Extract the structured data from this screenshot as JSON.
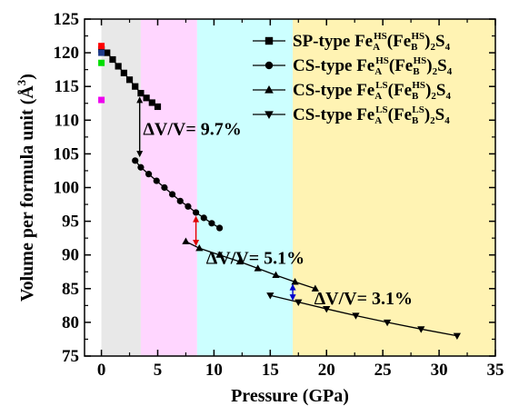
{
  "chart_data": {
    "type": "scatter",
    "xlabel": "Pressure (GPa)",
    "ylabel": "Volume per formula unit (Å³)",
    "ylabel_base": "Volume per formula unit (",
    "ylabel_unit": "Å",
    "ylabel_exp": "3",
    "ylabel_close": ")",
    "xlim": [
      -1.5,
      35
    ],
    "ylim": [
      75,
      125
    ],
    "xticks": [
      0,
      5,
      10,
      15,
      20,
      25,
      30,
      35
    ],
    "yticks": [
      75,
      80,
      85,
      90,
      95,
      100,
      105,
      110,
      115,
      120,
      125
    ],
    "regions": [
      {
        "x0": 0.0,
        "x1": 3.5,
        "color": "#e8e8e8"
      },
      {
        "x0": 3.5,
        "x1": 8.5,
        "color": "#ffd6ff"
      },
      {
        "x0": 8.5,
        "x1": 17.0,
        "color": "#ccffff"
      },
      {
        "x0": 17.0,
        "x1": 35,
        "color": "#fff3b3"
      }
    ],
    "series": [
      {
        "name": "SP-type Fe_A^HS(Fe_B^HS)_2S_4",
        "marker": "square",
        "legend_parts": [
          [
            "t",
            "SP-type Fe"
          ],
          [
            "sub",
            "A"
          ],
          [
            "sup",
            "HS"
          ],
          [
            "t",
            "(Fe"
          ],
          [
            "sub",
            "B"
          ],
          [
            "sup",
            "HS"
          ],
          [
            "t",
            ")"
          ],
          [
            "sub",
            "2"
          ],
          [
            "t",
            "S"
          ],
          [
            "sub",
            "4"
          ]
        ],
        "x": [
          0,
          0.5,
          1.0,
          1.5,
          2.0,
          2.5,
          3.0,
          3.5,
          4.0,
          4.5,
          5.0
        ],
        "y": [
          120.5,
          120.0,
          119.0,
          118.0,
          117.0,
          116.0,
          115.0,
          114.0,
          113.3,
          112.6,
          112.0
        ]
      },
      {
        "name": "CS-type Fe_A^HS(Fe_B^HS)_2S_4",
        "marker": "circle",
        "legend_parts": [
          [
            "t",
            "CS-type Fe"
          ],
          [
            "sub",
            "A"
          ],
          [
            "sup",
            "HS"
          ],
          [
            "t",
            "(Fe"
          ],
          [
            "sub",
            "B"
          ],
          [
            "sup",
            "HS"
          ],
          [
            "t",
            ")"
          ],
          [
            "sub",
            "2"
          ],
          [
            "t",
            "S"
          ],
          [
            "sub",
            "4"
          ]
        ],
        "x": [
          3.0,
          3.5,
          4.2,
          4.9,
          5.6,
          6.3,
          7.0,
          7.7,
          8.4,
          9.1,
          9.8,
          10.5
        ],
        "y": [
          104.0,
          103.0,
          102.0,
          101.0,
          100.0,
          99.0,
          98.0,
          97.2,
          96.3,
          95.5,
          94.7,
          94.0
        ]
      },
      {
        "name": "CS-type Fe_A^LS(Fe_B^HS)_2S_4",
        "marker": "triangle-up",
        "legend_parts": [
          [
            "t",
            "CS-type Fe"
          ],
          [
            "sub",
            "A"
          ],
          [
            "sup",
            "LS"
          ],
          [
            "t",
            "(Fe"
          ],
          [
            "sub",
            "B"
          ],
          [
            "sup",
            "HS"
          ],
          [
            "t",
            ")"
          ],
          [
            "sub",
            "2"
          ],
          [
            "t",
            "S"
          ],
          [
            "sub",
            "4"
          ]
        ],
        "x": [
          7.5,
          8.7,
          10.5,
          12.3,
          13.9,
          15.5,
          17.2,
          19.0
        ],
        "y": [
          92.0,
          91.0,
          90.0,
          89.0,
          88.0,
          87.0,
          86.0,
          85.0
        ]
      },
      {
        "name": "CS-type Fe_A^LS(Fe_B^LS)_2S_4",
        "marker": "triangle-down",
        "legend_parts": [
          [
            "t",
            "CS-type Fe"
          ],
          [
            "sub",
            "A"
          ],
          [
            "sup",
            "LS"
          ],
          [
            "t",
            "(Fe"
          ],
          [
            "sub",
            "B"
          ],
          [
            "sup",
            "LS"
          ],
          [
            "t",
            ")"
          ],
          [
            "sub",
            "2"
          ],
          [
            "t",
            "S"
          ],
          [
            "sub",
            "4"
          ]
        ],
        "x": [
          15.0,
          17.5,
          20.0,
          22.6,
          25.4,
          28.4,
          31.6
        ],
        "y": [
          84.0,
          83.0,
          82.0,
          81.0,
          80.0,
          79.0,
          78.0
        ]
      }
    ],
    "extra_points": [
      {
        "x": 0,
        "y": 121.0,
        "color": "#ff0000"
      },
      {
        "x": 0,
        "y": 120.0,
        "color": "#1e3a8a"
      },
      {
        "x": 0,
        "y": 118.5,
        "color": "#00dd00"
      },
      {
        "x": 0,
        "y": 113.0,
        "color": "#ee00ee"
      }
    ],
    "annotations": [
      {
        "text": "ΔV/V= 9.7%",
        "arrow_x": 3.4,
        "y_from": 113.5,
        "y_to": 104.5,
        "color": "#000000",
        "text_x": 3.7,
        "text_y": 107.8
      },
      {
        "text": "ΔV/V= 5.1%",
        "arrow_x": 8.4,
        "y_from": 95.8,
        "y_to": 91.3,
        "color": "#dd0000",
        "text_x": 9.3,
        "text_y": 88.7
      },
      {
        "text": "ΔV/V= 3.1%",
        "arrow_x": 17.0,
        "y_from": 85.7,
        "y_to": 83.2,
        "color": "#0000cc",
        "text_x": 18.9,
        "text_y": 82.7
      }
    ],
    "legend_position": "top-right"
  }
}
